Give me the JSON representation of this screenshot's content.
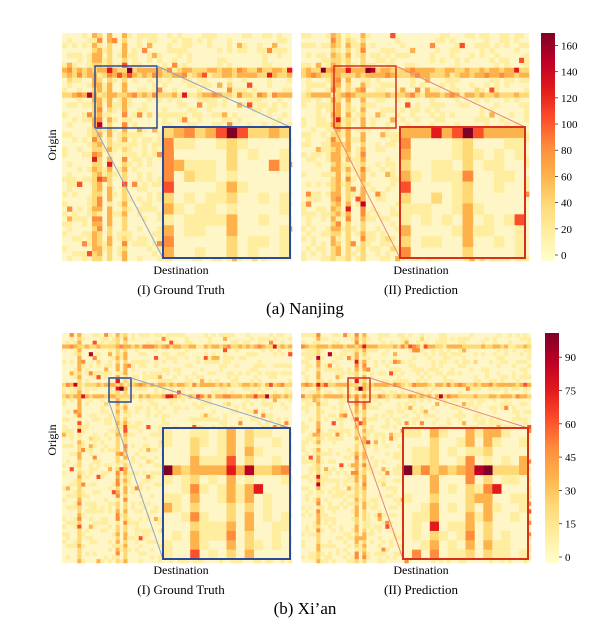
{
  "chart_data": [
    {
      "type": "heatmap",
      "panel_caption": "(a) Nanjing",
      "ylabel": "Origin",
      "colorbar": {
        "ticks": [
          0,
          20,
          40,
          60,
          80,
          100,
          120,
          140,
          160
        ],
        "max": 168
      },
      "subplots": [
        {
          "xlabel": "Destination",
          "caption": "(I) Ground Truth",
          "zoom_color": "#2b4a9a"
        },
        {
          "xlabel": "Destination",
          "caption": "(II) Prediction",
          "zoom_color": "#d7301f"
        }
      ],
      "colormap": [
        "#ffffcc",
        "#ffeda0",
        "#fed976",
        "#feb24c",
        "#fd8d3c",
        "#fc4e2a",
        "#e31a1c",
        "#bd0026",
        "#800026"
      ]
    },
    {
      "type": "heatmap",
      "panel_caption": "(b) Xi’an",
      "ylabel": "Origin",
      "colorbar": {
        "ticks": [
          0,
          15,
          30,
          45,
          60,
          75,
          90
        ],
        "max": 100
      },
      "subplots": [
        {
          "xlabel": "Destination",
          "caption": "(I) Ground Truth",
          "zoom_color": "#2b4a9a"
        },
        {
          "xlabel": "Destination",
          "caption": "(II) Prediction",
          "zoom_color": "#d7301f"
        }
      ],
      "colormap": [
        "#ffffcc",
        "#ffeda0",
        "#fed976",
        "#feb24c",
        "#fd8d3c",
        "#fc4e2a",
        "#e31a1c",
        "#bd0026",
        "#800026"
      ]
    }
  ]
}
